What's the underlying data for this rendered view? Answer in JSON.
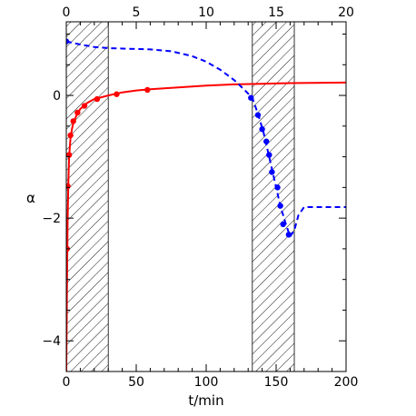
{
  "chart_data": {
    "type": "line",
    "xlabel": "t/min",
    "ylabel": "α",
    "xlim": [
      0,
      200
    ],
    "ylim": [
      -4.5,
      1.2
    ],
    "top_axis": {
      "xlim": [
        0,
        20
      ],
      "ticks": [
        0,
        5,
        10,
        15,
        20
      ]
    },
    "x_ticks": [
      0,
      50,
      100,
      150,
      200
    ],
    "y_ticks": [
      -4,
      -2,
      0
    ],
    "x_tick_labels": [
      "0",
      "50",
      "100",
      "150",
      "200"
    ],
    "y_tick_labels": [
      "−4",
      "−2",
      "0"
    ],
    "top_tick_labels": [
      "0",
      "5",
      "10",
      "15",
      "20"
    ],
    "grid": false,
    "hatched_regions": [
      {
        "x0": 0,
        "x1": 30
      },
      {
        "x0": 133,
        "x1": 163
      }
    ],
    "series": [
      {
        "color": "#ff0000",
        "line_style": "solid",
        "curve": [
          [
            0,
            -4.5
          ],
          [
            0.5,
            -3.0
          ],
          [
            1,
            -2.0
          ],
          [
            1.5,
            -1.4
          ],
          [
            2,
            -1.0
          ],
          [
            3,
            -0.7
          ],
          [
            4,
            -0.55
          ],
          [
            5,
            -0.45
          ],
          [
            7,
            -0.34
          ],
          [
            10,
            -0.22
          ],
          [
            15,
            -0.12
          ],
          [
            20,
            -0.06
          ],
          [
            30,
            0.0
          ],
          [
            40,
            0.05
          ],
          [
            50,
            0.08
          ],
          [
            60,
            0.1
          ],
          [
            80,
            0.13
          ],
          [
            100,
            0.16
          ],
          [
            120,
            0.18
          ],
          [
            140,
            0.19
          ],
          [
            160,
            0.2
          ],
          [
            200,
            0.21
          ]
        ],
        "points": [
          [
            0.5,
            -2.5
          ],
          [
            1,
            -1.48
          ],
          [
            2,
            -0.97
          ],
          [
            3,
            -0.65
          ],
          [
            5,
            -0.42
          ],
          [
            8,
            -0.28
          ],
          [
            13,
            -0.17
          ],
          [
            22,
            -0.06
          ],
          [
            36,
            0.02
          ],
          [
            58,
            0.09
          ]
        ]
      },
      {
        "color": "#0000ff",
        "line_style": "dashed",
        "curve": [
          [
            0,
            0.88
          ],
          [
            10,
            0.83
          ],
          [
            20,
            0.79
          ],
          [
            30,
            0.77
          ],
          [
            45,
            0.76
          ],
          [
            60,
            0.75
          ],
          [
            75,
            0.72
          ],
          [
            90,
            0.64
          ],
          [
            100,
            0.55
          ],
          [
            110,
            0.42
          ],
          [
            120,
            0.25
          ],
          [
            127,
            0.1
          ],
          [
            133,
            -0.04
          ],
          [
            137,
            -0.3
          ],
          [
            141,
            -0.6
          ],
          [
            145,
            -1.0
          ],
          [
            149,
            -1.4
          ],
          [
            153,
            -1.8
          ],
          [
            157,
            -2.1
          ],
          [
            160,
            -2.3
          ],
          [
            163,
            -2.2
          ],
          [
            166,
            -1.95
          ],
          [
            170,
            -1.82
          ],
          [
            180,
            -1.82
          ],
          [
            200,
            -1.82
          ]
        ],
        "points": [
          [
            0,
            0.88
          ],
          [
            132,
            -0.04
          ],
          [
            137,
            -0.32
          ],
          [
            140,
            -0.55
          ],
          [
            143,
            -0.75
          ],
          [
            145,
            -0.97
          ],
          [
            147,
            -1.25
          ],
          [
            151,
            -1.5
          ],
          [
            153,
            -1.8
          ],
          [
            155,
            -2.1
          ],
          [
            159,
            -2.27
          ]
        ]
      }
    ]
  }
}
